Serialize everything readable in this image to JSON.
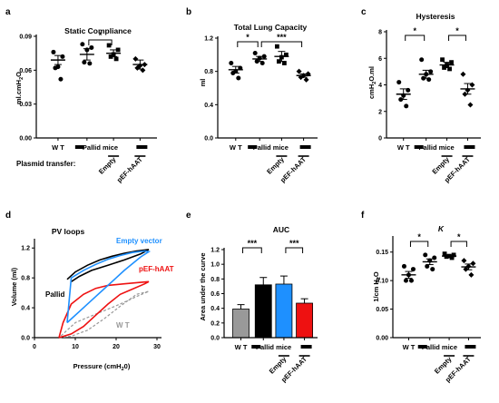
{
  "panels": {
    "a": {
      "letter": "a",
      "title": "Static Compliance"
    },
    "b": {
      "letter": "b",
      "title": "Total Lung Capacity"
    },
    "c": {
      "letter": "c",
      "title": "Hysteresis"
    },
    "d": {
      "letter": "d",
      "title": "PV loops"
    },
    "e": {
      "letter": "e",
      "title": "AUC"
    },
    "f": {
      "letter": "f",
      "title": "K"
    }
  },
  "groups": {
    "wt": "W T",
    "pallid": "Pallid mice",
    "empty": "Empty",
    "pef": "pEF-hAAT"
  },
  "row_label": "Plasmid transfer:",
  "sig": {
    "one": "*",
    "three": "***"
  },
  "colors": {
    "wt": "#999999",
    "pallid": "#000000",
    "empty": "#1E90FF",
    "pef": "#EE1111"
  },
  "chart_data": [
    {
      "id": "a",
      "type": "scatter",
      "title": "Static Compliance",
      "ylabel": "ml.cmH2O",
      "ylim": [
        0,
        0.09
      ],
      "yticks": [
        "0.00",
        "0.03",
        "0.06",
        "0.09"
      ],
      "categories": [
        "W T",
        "Pallid mice",
        "Empty",
        "pEF-hAAT"
      ],
      "points": [
        [
          0.076,
          0.072,
          0.063,
          0.062,
          0.052
        ],
        [
          0.083,
          0.08,
          0.078,
          0.067,
          0.066
        ],
        [
          0.082,
          0.078,
          0.074,
          0.072,
          0.07
        ],
        [
          0.07,
          0.065,
          0.064,
          0.062,
          0.06
        ]
      ],
      "means": [
        0.069,
        0.074,
        0.075,
        0.065
      ],
      "sem": [
        0.004,
        0.005,
        0.003,
        0.004
      ],
      "significance": [
        {
          "from": 1,
          "to": 2,
          "label": "*"
        }
      ]
    },
    {
      "id": "b",
      "type": "scatter",
      "title": "Total Lung Capacity",
      "ylabel": "ml",
      "ylim": [
        0,
        1.2
      ],
      "yticks": [
        "0.0",
        "0.4",
        "0.8",
        "1.2"
      ],
      "categories": [
        "W T",
        "Pallid mice",
        "Empty",
        "pEF-hAAT"
      ],
      "points": [
        [
          0.9,
          0.84,
          0.8,
          0.78,
          0.72
        ],
        [
          1.02,
          0.98,
          0.96,
          0.92,
          0.9
        ],
        [
          1.1,
          1.0,
          0.97,
          0.92,
          0.9
        ],
        [
          0.8,
          0.77,
          0.75,
          0.73,
          0.7
        ]
      ],
      "means": [
        0.82,
        0.95,
        0.98,
        0.75
      ],
      "sem": [
        0.04,
        0.03,
        0.06,
        0.02
      ],
      "significance": [
        {
          "from": 0,
          "to": 1,
          "label": "*"
        },
        {
          "from": 1,
          "to": 3,
          "label": "***"
        }
      ]
    },
    {
      "id": "c",
      "type": "scatter",
      "title": "Hysteresis",
      "ylabel": "cmH2O.ml",
      "ylim": [
        0,
        8
      ],
      "yticks": [
        "0",
        "2",
        "4",
        "6",
        "8"
      ],
      "categories": [
        "W T",
        "Pallid mice",
        "Empty",
        "pEF-hAAT"
      ],
      "points": [
        [
          4.2,
          3.6,
          3.2,
          2.9,
          2.4
        ],
        [
          5.9,
          5.0,
          4.8,
          4.5,
          4.4
        ],
        [
          5.9,
          5.7,
          5.5,
          5.3,
          5.2
        ],
        [
          4.8,
          4.0,
          3.6,
          3.3,
          2.5
        ]
      ],
      "means": [
        3.3,
        4.8,
        5.5,
        3.7
      ],
      "sem": [
        0.4,
        0.3,
        0.2,
        0.4
      ],
      "significance": [
        {
          "from": 0,
          "to": 1,
          "label": "*"
        },
        {
          "from": 2,
          "to": 3,
          "label": "*"
        }
      ]
    },
    {
      "id": "d",
      "type": "line",
      "title": "PV loops",
      "xlabel": "Pressure (cmH2O)",
      "ylabel": "Volume (ml)",
      "xlim": [
        0,
        30
      ],
      "ylim": [
        0,
        1.3
      ],
      "xticks": [
        "0",
        "10",
        "20",
        "30"
      ],
      "yticks": [
        "0.0",
        "0.4",
        "0.8",
        "1.2"
      ],
      "annotations": [
        "Empty vector",
        "pEF-hAAT",
        "Pallid",
        "W T"
      ],
      "series": [
        {
          "name": "W T",
          "color": "#999999",
          "dashed": true,
          "x": [
            6,
            9,
            13,
            17,
            21,
            25,
            28,
            25,
            21,
            17,
            13,
            10,
            8,
            6
          ],
          "y": [
            0.0,
            0.02,
            0.1,
            0.25,
            0.42,
            0.58,
            0.62,
            0.55,
            0.45,
            0.36,
            0.27,
            0.2,
            0.1,
            0.0
          ]
        },
        {
          "name": "pEF-hAAT",
          "color": "#EE1111",
          "dashed": false,
          "x": [
            6,
            9,
            12,
            15,
            18,
            21,
            24,
            27,
            28,
            26,
            22,
            18,
            15,
            12,
            9,
            7,
            6
          ],
          "y": [
            0.0,
            0.05,
            0.15,
            0.3,
            0.45,
            0.58,
            0.65,
            0.72,
            0.75,
            0.74,
            0.72,
            0.7,
            0.66,
            0.58,
            0.45,
            0.2,
            0.0
          ]
        },
        {
          "name": "Pallid",
          "color": "#000000",
          "dashed": false,
          "x": [
            8,
            10,
            13,
            16,
            19,
            22,
            25,
            28,
            26,
            22,
            18,
            14,
            11,
            9
          ],
          "y": [
            0.78,
            0.88,
            0.97,
            1.04,
            1.09,
            1.13,
            1.16,
            1.18,
            1.12,
            1.04,
            0.97,
            0.9,
            0.82,
            0.75
          ]
        },
        {
          "name": "Empty vector",
          "color": "#1E90FF",
          "dashed": false,
          "x": [
            8,
            9,
            12,
            15,
            18,
            21,
            24,
            27,
            28,
            26,
            22,
            18,
            14,
            11,
            9,
            8
          ],
          "y": [
            0.2,
            0.8,
            0.9,
            0.98,
            1.05,
            1.1,
            1.14,
            1.16,
            1.15,
            1.08,
            0.9,
            0.7,
            0.5,
            0.35,
            0.25,
            0.2
          ]
        }
      ]
    },
    {
      "id": "e",
      "type": "bar",
      "title": "AUC",
      "ylabel": "Area under the curve",
      "ylim": [
        0,
        1.2
      ],
      "yticks": [
        "0.0",
        "0.2",
        "0.4",
        "0.6",
        "0.8",
        "1.0",
        "1.2"
      ],
      "categories": [
        "W T",
        "Pallid mice",
        "Empty",
        "pEF-hAAT"
      ],
      "values": [
        0.39,
        0.72,
        0.73,
        0.47
      ],
      "sem": [
        0.06,
        0.1,
        0.11,
        0.06
      ],
      "colors": [
        "#999999",
        "#000000",
        "#1E90FF",
        "#EE1111"
      ],
      "significance": [
        {
          "from": 0,
          "to": 1,
          "label": "***"
        },
        {
          "from": 2,
          "to": 3,
          "label": "***"
        }
      ]
    },
    {
      "id": "f",
      "type": "scatter",
      "title": "K",
      "ylabel": "1/cm H2O",
      "ylim": [
        0,
        0.175
      ],
      "yticks": [
        "0.00",
        "0.05",
        "0.10",
        "0.15"
      ],
      "categories": [
        "W T",
        "Pallid mice",
        "Empty",
        "pEF-hAAT"
      ],
      "points": [
        [
          0.125,
          0.12,
          0.11,
          0.1,
          0.1
        ],
        [
          0.145,
          0.14,
          0.135,
          0.125,
          0.12
        ],
        [
          0.147,
          0.145,
          0.143,
          0.142,
          0.14
        ],
        [
          0.135,
          0.13,
          0.125,
          0.12,
          0.11
        ]
      ],
      "means": [
        0.11,
        0.133,
        0.143,
        0.124
      ],
      "sem": [
        0.006,
        0.005,
        0.002,
        0.005
      ],
      "significance": [
        {
          "from": 0,
          "to": 1,
          "label": "*"
        },
        {
          "from": 2,
          "to": 3,
          "label": "*"
        }
      ]
    }
  ]
}
